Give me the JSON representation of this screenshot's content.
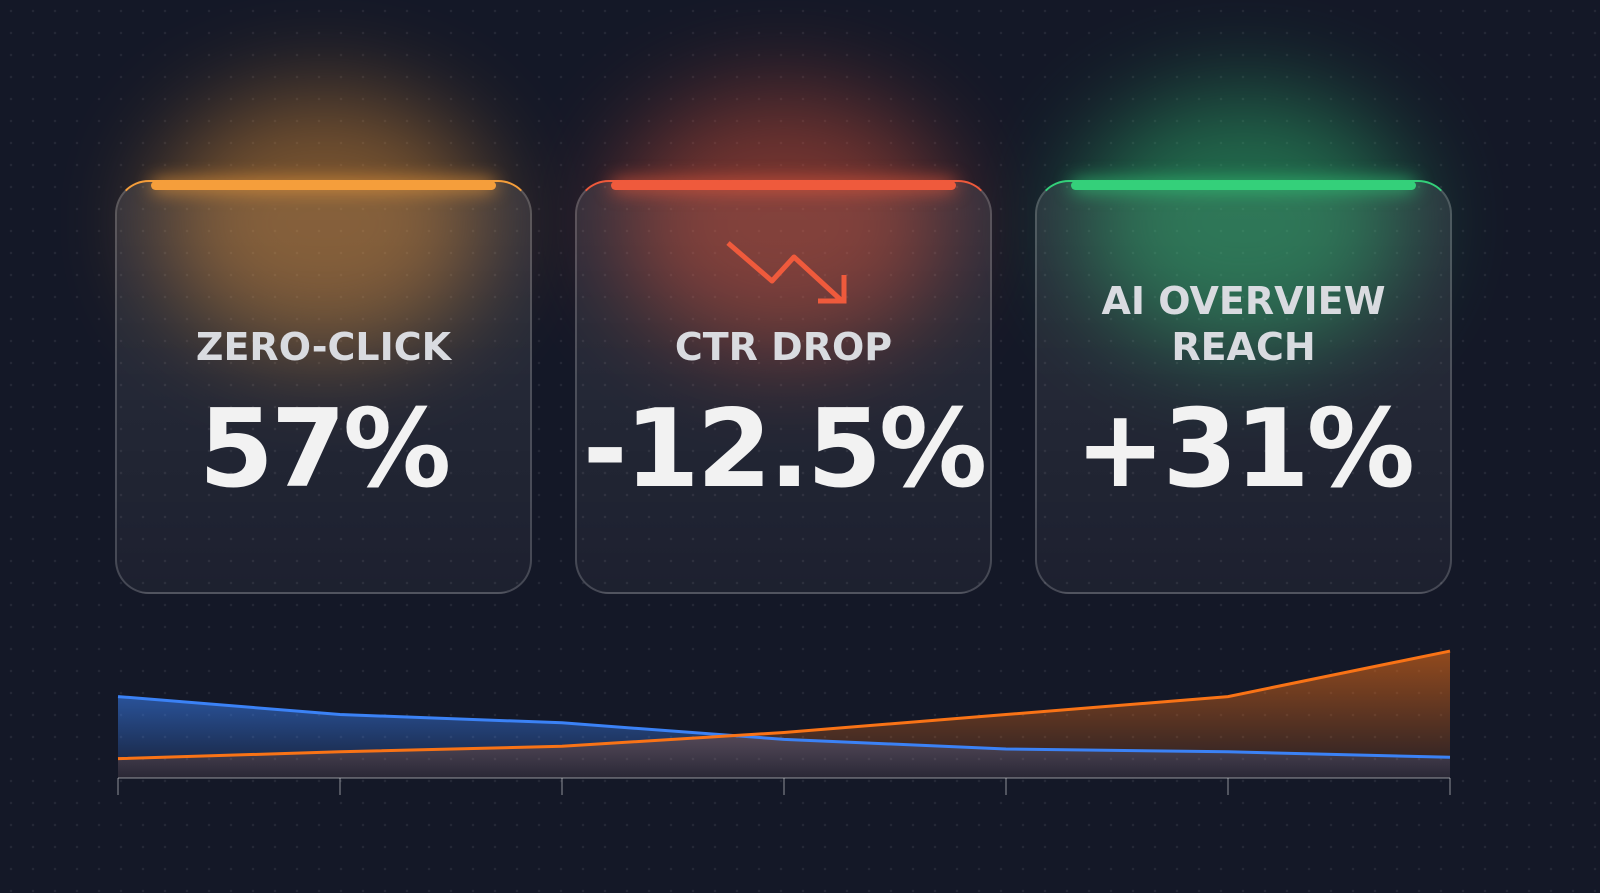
{
  "cards": [
    {
      "label": "ZERO-CLICK",
      "value": "57%",
      "color": "#f59e3b"
    },
    {
      "label": "CTR DROP",
      "value": "-12.5%",
      "color": "#ef5a3c"
    },
    {
      "label": "AI OVERVIEW REACH",
      "value": "+31%",
      "color": "#34d07a"
    }
  ],
  "chart_data": {
    "type": "area",
    "categories": [
      null,
      null,
      null,
      null,
      null,
      null,
      null
    ],
    "series": [
      {
        "color": "#3b82f6",
        "values": [
          59,
          46,
          40,
          28,
          21,
          19,
          15
        ]
      },
      {
        "color": "#f97316",
        "values": [
          14,
          19,
          23,
          33,
          46,
          59,
          92
        ]
      }
    ],
    "ylim": [
      0,
      100
    ]
  }
}
